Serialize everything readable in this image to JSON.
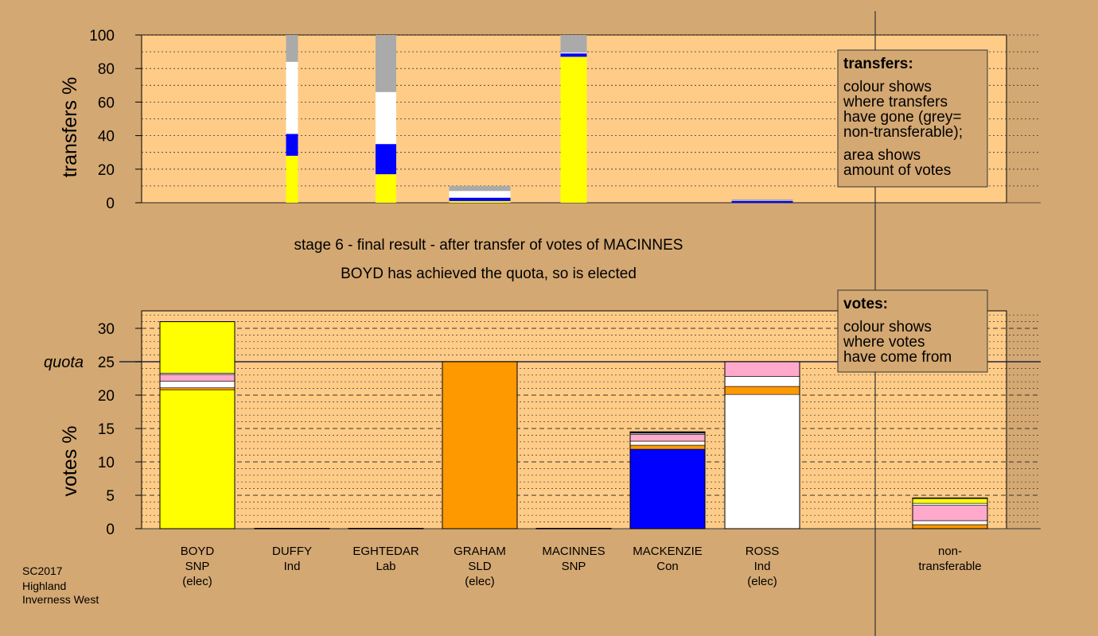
{
  "chart_data": [
    {
      "type": "bar",
      "ylabel": "transfers %",
      "ylim": [
        0,
        100
      ],
      "yticks": [
        0,
        20,
        40,
        60,
        80,
        100
      ],
      "stacked": true,
      "columns": [
        {
          "segments": []
        },
        {
          "segments": [
            {
              "color": "#ffff00",
              "value": 28
            },
            {
              "color": "#0000ff",
              "value": 13
            },
            {
              "color": "#ffffff",
              "value": 43
            },
            {
              "color": "#aaaaaa",
              "value": 16
            }
          ]
        },
        {
          "segments": [
            {
              "color": "#ffff00",
              "value": 17
            },
            {
              "color": "#0000ff",
              "value": 18
            },
            {
              "color": "#ffffff",
              "value": 31
            },
            {
              "color": "#aaaaaa",
              "value": 34
            }
          ]
        },
        {
          "segments": [
            {
              "color": "#ffff00",
              "value": 1
            },
            {
              "color": "#0000ff",
              "value": 2
            },
            {
              "color": "#ffffff",
              "value": 4
            },
            {
              "color": "#aaaaaa",
              "value": 3
            }
          ]
        },
        {
          "segments": [
            {
              "color": "#ffff00",
              "value": 87
            },
            {
              "color": "#0000ff",
              "value": 2
            },
            {
              "color": "#ffffff",
              "value": 0.5
            },
            {
              "color": "#aaaaaa",
              "value": 10.5
            }
          ]
        },
        {
          "segments": []
        },
        {
          "segments": [
            {
              "color": "#0000ff",
              "value": 1
            },
            {
              "color": "#aaaaaa",
              "value": 1
            }
          ]
        },
        {
          "segments": []
        }
      ],
      "widths": [
        0,
        15,
        26,
        77,
        33,
        0,
        77,
        0
      ]
    },
    {
      "type": "bar",
      "ylabel": "votes %",
      "ylim": [
        0,
        32
      ],
      "yticks": [
        0,
        5,
        10,
        15,
        20,
        25,
        30
      ],
      "quota": 25,
      "quota_label": "quota",
      "stacked": true,
      "categories": [
        {
          "name": "BOYD",
          "party": "SNP",
          "status": "(elec)"
        },
        {
          "name": "DUFFY",
          "party": "Ind",
          "status": ""
        },
        {
          "name": "EGHTEDAR",
          "party": "Lab",
          "status": ""
        },
        {
          "name": "GRAHAM",
          "party": "SLD",
          "status": "(elec)"
        },
        {
          "name": "MACINNES",
          "party": "SNP",
          "status": ""
        },
        {
          "name": "MACKENZIE",
          "party": "Con",
          "status": ""
        },
        {
          "name": "ROSS",
          "party": "Ind",
          "status": "(elec)"
        },
        {
          "name": "non-",
          "party": "transferable",
          "status": ""
        }
      ],
      "columns": [
        {
          "segments": [
            {
              "color": "#ffff00",
              "value": 20.8
            },
            {
              "color": "#ff9900",
              "value": 0.3
            },
            {
              "color": "#ffffff",
              "value": 1.0
            },
            {
              "color": "#ffaacc",
              "value": 1.0
            },
            {
              "color": "#ffffff",
              "value": 0.2
            },
            {
              "color": "#ffff00",
              "value": 7.7
            }
          ]
        },
        {
          "segments": [
            {
              "color": "#ffff00",
              "value": 0.05
            }
          ]
        },
        {
          "segments": [
            {
              "color": "#ff0000",
              "value": 0.05
            }
          ]
        },
        {
          "segments": [
            {
              "color": "#ff9900",
              "value": 25.0
            }
          ]
        },
        {
          "segments": [
            {
              "color": "#ffff00",
              "value": 0.05
            }
          ]
        },
        {
          "segments": [
            {
              "color": "#0000ff",
              "value": 11.9
            },
            {
              "color": "#ff9900",
              "value": 0.6
            },
            {
              "color": "#ffffff",
              "value": 0.6
            },
            {
              "color": "#ffaacc",
              "value": 1.0
            },
            {
              "color": "#ffffff",
              "value": 0.2
            },
            {
              "color": "#0000ff",
              "value": 0.1
            },
            {
              "color": "#666666",
              "value": 0.1
            }
          ]
        },
        {
          "segments": [
            {
              "color": "#ffffff",
              "value": 20.1
            },
            {
              "color": "#ff9900",
              "value": 1.2
            },
            {
              "color": "#ffffff",
              "value": 1.5
            },
            {
              "color": "#ffaacc",
              "value": 2.2
            }
          ]
        },
        {
          "segments": [
            {
              "color": "#ff9900",
              "value": 0.6
            },
            {
              "color": "#ffffff",
              "value": 0.6
            },
            {
              "color": "#ffaacc",
              "value": 2.3
            },
            {
              "color": "#ffffff",
              "value": 0.3
            },
            {
              "color": "#ffff00",
              "value": 0.7
            },
            {
              "color": "#0000ff",
              "value": 0.1
            }
          ]
        }
      ]
    }
  ],
  "stage_line1": "stage 6 - final result - after transfer of votes of MACINNES",
  "stage_line2": "BOYD has achieved the quota, so is elected",
  "legend_transfers": {
    "title": "transfers:",
    "lines": [
      "colour shows",
      "where transfers",
      "have gone (grey=",
      "non-transferable);",
      "area shows",
      "amount of votes"
    ]
  },
  "legend_votes": {
    "title": "votes:",
    "lines": [
      "colour shows",
      "where votes",
      "have come from"
    ]
  },
  "footer": [
    "SC2017",
    "Highland",
    "Inverness West"
  ]
}
